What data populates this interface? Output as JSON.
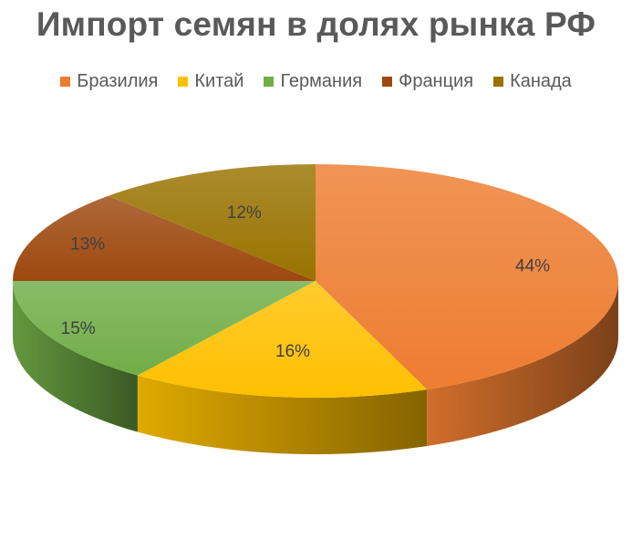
{
  "chart_data": {
    "type": "pie",
    "title": "Импорт семян в долях рынка РФ",
    "categories": [
      "Бразилия",
      "Китай",
      "Германия",
      "Франция",
      "Канада"
    ],
    "values": [
      44,
      16,
      15,
      13,
      12
    ],
    "data_labels": [
      "44%",
      "16%",
      "15%",
      "13%",
      "12%"
    ],
    "legend_position": "top",
    "three_d": true,
    "colors": {
      "Бразилия": "#ED7D31",
      "Китай": "#FFC000",
      "Германия": "#70AD47",
      "Франция": "#9E480E",
      "Канада": "#997300"
    }
  }
}
